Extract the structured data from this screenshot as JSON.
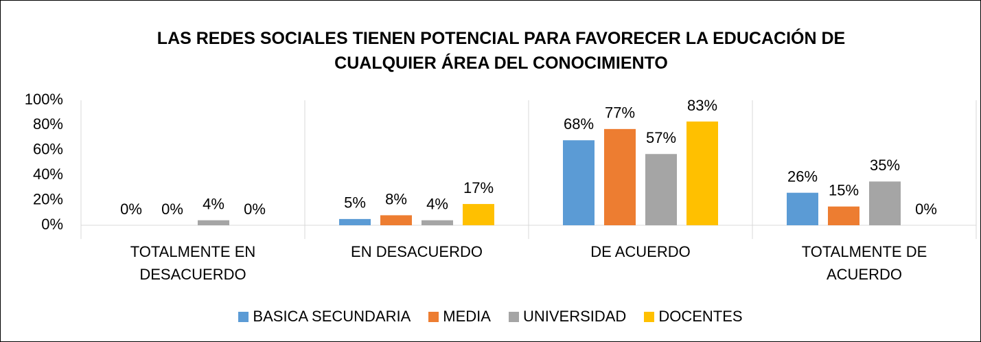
{
  "chart_data": {
    "type": "bar",
    "title": "LAS REDES SOCIALES TIENEN POTENCIAL PARA FAVORECER LA EDUCACIÓN DE CUALQUIER ÁREA DEL CONOCIMIENTO",
    "categories": [
      "TOTALMENTE EN DESACUERDO",
      "EN DESACUERDO",
      "DE ACUERDO",
      "TOTALMENTE DE ACUERDO"
    ],
    "series": [
      {
        "name": "BASICA SECUNDARIA",
        "color": "#5b9bd5",
        "values": [
          0,
          5,
          68,
          26
        ],
        "value_labels": [
          "0%",
          "5%",
          "68%",
          "26%"
        ]
      },
      {
        "name": "MEDIA",
        "color": "#ed7d31",
        "values": [
          0,
          8,
          77,
          15
        ],
        "value_labels": [
          "0%",
          "8%",
          "77%",
          "15%"
        ]
      },
      {
        "name": "UNIVERSIDAD",
        "color": "#a5a5a5",
        "values": [
          4,
          4,
          57,
          35
        ],
        "value_labels": [
          "4%",
          "4%",
          "57%",
          "35%"
        ]
      },
      {
        "name": "DOCENTES",
        "color": "#ffc000",
        "values": [
          0,
          17,
          83,
          0
        ],
        "value_labels": [
          "0%",
          "17%",
          "83%",
          "0%"
        ]
      }
    ],
    "ylim": [
      0,
      100
    ],
    "yticks": [
      {
        "value": 0,
        "label": "0%"
      },
      {
        "value": 20,
        "label": "20%"
      },
      {
        "value": 40,
        "label": "40%"
      },
      {
        "value": 60,
        "label": "60%"
      },
      {
        "value": 80,
        "label": "80%"
      },
      {
        "value": 100,
        "label": "100%"
      }
    ],
    "legend": "bottom",
    "grid": false
  }
}
